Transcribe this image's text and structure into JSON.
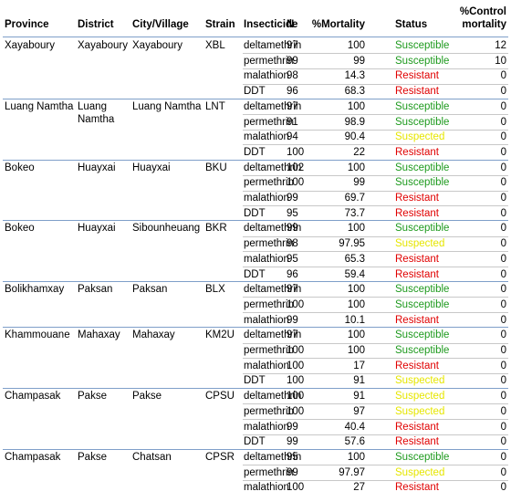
{
  "table": {
    "headers": [
      "Province",
      "District",
      "City/Village",
      "Strain",
      "Insecticide",
      "N",
      "%Mortality",
      "Status",
      "%Control mortality"
    ],
    "groups": [
      {
        "province": "Xayaboury",
        "district": "Xayaboury",
        "city": "Xayaboury",
        "strain": "XBL",
        "rows": [
          [
            "deltamethrin",
            97,
            100,
            "Susceptible",
            12
          ],
          [
            "permethrin",
            99,
            99,
            "Susceptible",
            10
          ],
          [
            "malathion",
            98,
            14.3,
            "Resistant",
            0
          ],
          [
            "DDT",
            96,
            68.3,
            "Resistant",
            0
          ]
        ]
      },
      {
        "province": "Luang Namtha",
        "district": "Luang Namtha",
        "city": "Luang Namtha",
        "strain": "LNT",
        "rows": [
          [
            "deltamethrin",
            97,
            100,
            "Susceptible",
            0
          ],
          [
            "permethrin",
            91,
            98.9,
            "Susceptible",
            0
          ],
          [
            "malathion",
            94,
            90.4,
            "Suspected",
            0
          ],
          [
            "DDT",
            100,
            22,
            "Resistant",
            0
          ]
        ]
      },
      {
        "province": "Bokeo",
        "district": "Huayxai",
        "city": "Huayxai",
        "strain": "BKU",
        "rows": [
          [
            "deltamethrin",
            102,
            100,
            "Susceptible",
            0
          ],
          [
            "permethrin",
            100,
            99,
            "Susceptible",
            0
          ],
          [
            "malathion",
            99,
            69.7,
            "Resistant",
            0
          ],
          [
            "DDT",
            95,
            73.7,
            "Resistant",
            0
          ]
        ]
      },
      {
        "province": "Bokeo",
        "district": "Huayxai",
        "city": "Sibounheuang",
        "strain": "BKR",
        "rows": [
          [
            "deltamethrin",
            99,
            100,
            "Susceptible",
            0
          ],
          [
            "permethrin",
            98,
            97.95,
            "Suspected",
            0
          ],
          [
            "malathion",
            95,
            65.3,
            "Resistant",
            0
          ],
          [
            "DDT",
            96,
            59.4,
            "Resistant",
            0
          ]
        ]
      },
      {
        "province": "Bolikhamxay",
        "district": "Paksan",
        "city": "Paksan",
        "strain": "BLX",
        "rows": [
          [
            "deltamethrin",
            97,
            100,
            "Susceptible",
            0
          ],
          [
            "permethrin",
            100,
            100,
            "Susceptible",
            0
          ],
          [
            "malathion",
            99,
            10.1,
            "Resistant",
            0
          ]
        ]
      },
      {
        "province": "Khammouane",
        "district": "Mahaxay",
        "city": "Mahaxay",
        "strain": "KM2U",
        "rows": [
          [
            "deltamethrin",
            97,
            100,
            "Susceptible",
            0
          ],
          [
            "permethrin",
            100,
            100,
            "Susceptible",
            0
          ],
          [
            "malathion",
            100,
            17,
            "Resistant",
            0
          ],
          [
            "DDT",
            100,
            91,
            "Suspected",
            0
          ]
        ]
      },
      {
        "province": "Champasak",
        "district": "Pakse",
        "city": "Pakse",
        "strain": "CPSU",
        "rows": [
          [
            "deltamethrin",
            100,
            91,
            "Suspected",
            0
          ],
          [
            "permethrin",
            100,
            97,
            "Suspected",
            0
          ],
          [
            "malathion",
            99,
            40.4,
            "Resistant",
            0
          ],
          [
            "DDT",
            99,
            57.6,
            "Resistant",
            0
          ]
        ]
      },
      {
        "province": "Champasak",
        "district": "Pakse",
        "city": "Chatsan",
        "strain": "CPSR",
        "rows": [
          [
            "deltamethrin",
            95,
            100,
            "Susceptible",
            0
          ],
          [
            "permethrin",
            99,
            97.97,
            "Suspected",
            0
          ],
          [
            "malathion",
            100,
            27,
            "Resistant",
            0
          ]
        ]
      }
    ]
  }
}
